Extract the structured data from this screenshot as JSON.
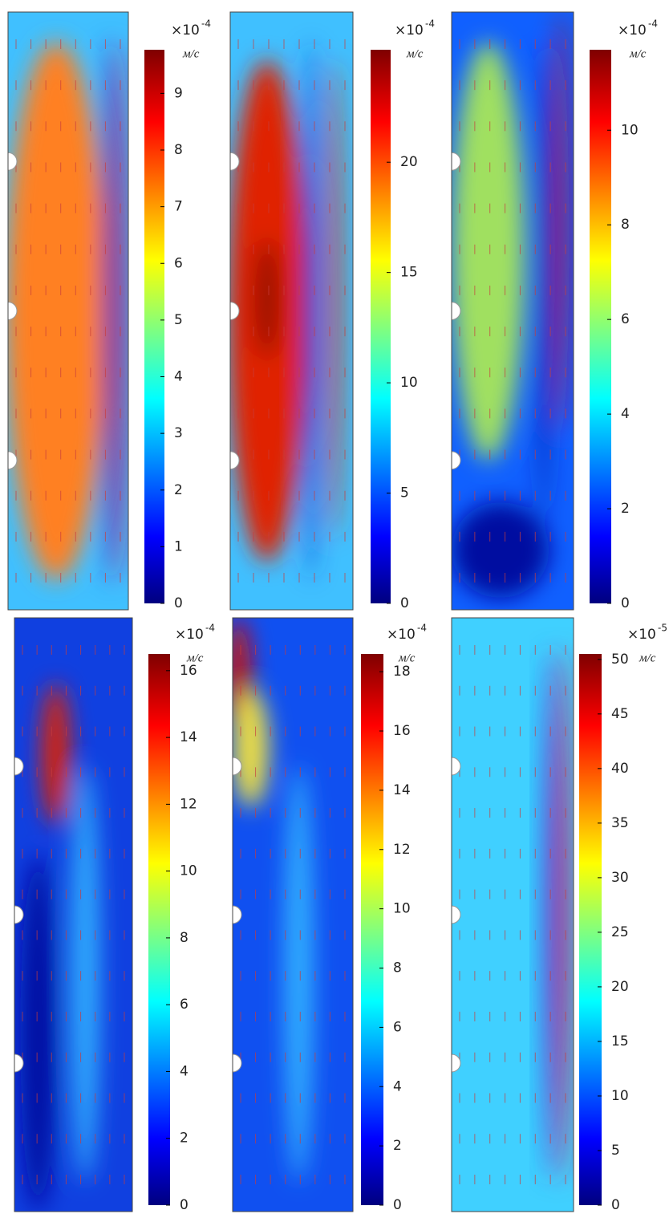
{
  "chart_data": [
    {
      "type": "heatmap",
      "scale_label": "×10",
      "scale_exponent": "-4",
      "unit": "м/с",
      "zlim": [
        0,
        9.77
      ],
      "zticks": [
        0,
        1,
        2,
        3,
        4,
        5,
        6,
        7,
        8,
        9
      ]
    },
    {
      "type": "heatmap",
      "scale_label": "×10",
      "scale_exponent": "-4",
      "unit": "м/с",
      "zlim": [
        0,
        25.1
      ],
      "zticks": [
        0,
        5,
        10,
        15,
        20
      ]
    },
    {
      "type": "heatmap",
      "scale_label": "×10",
      "scale_exponent": "-4",
      "unit": "м/с",
      "zlim": [
        0,
        11.7
      ],
      "zticks": [
        0,
        2,
        4,
        6,
        8,
        10
      ]
    },
    {
      "type": "heatmap",
      "scale_label": "×10",
      "scale_exponent": "-4",
      "unit": "м/с",
      "zlim": [
        0,
        16.5
      ],
      "zticks": [
        0,
        2,
        4,
        6,
        8,
        10,
        12,
        14,
        16
      ]
    },
    {
      "type": "heatmap",
      "scale_label": "×10",
      "scale_exponent": "-4",
      "unit": "м/с",
      "zlim": [
        0,
        18.6
      ],
      "zticks": [
        0,
        2,
        4,
        6,
        8,
        10,
        12,
        14,
        16,
        18
      ]
    },
    {
      "type": "heatmap",
      "scale_label": "×10",
      "scale_exponent": "-5",
      "unit": "м/с",
      "zlim": [
        0,
        50.5
      ],
      "zticks": [
        0,
        5,
        10,
        15,
        20,
        25,
        30,
        35,
        40,
        45,
        50
      ]
    }
  ]
}
